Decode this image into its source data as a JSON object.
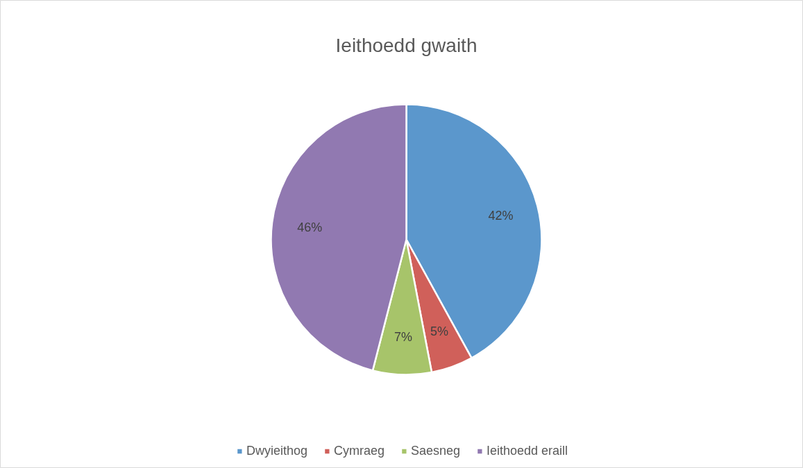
{
  "chart_data": {
    "type": "pie",
    "title": "Ieithoedd gwaith",
    "categories": [
      "Dwyieithog",
      "Cymraeg",
      "Saesneg",
      "Ieithoedd eraill"
    ],
    "values": [
      42,
      5,
      7,
      46
    ],
    "colors": [
      "#5b97cc",
      "#d0605a",
      "#a7c46a",
      "#9179b1"
    ],
    "value_labels": [
      "42%",
      "5%",
      "7%",
      "46%"
    ],
    "legend": "bottom"
  }
}
